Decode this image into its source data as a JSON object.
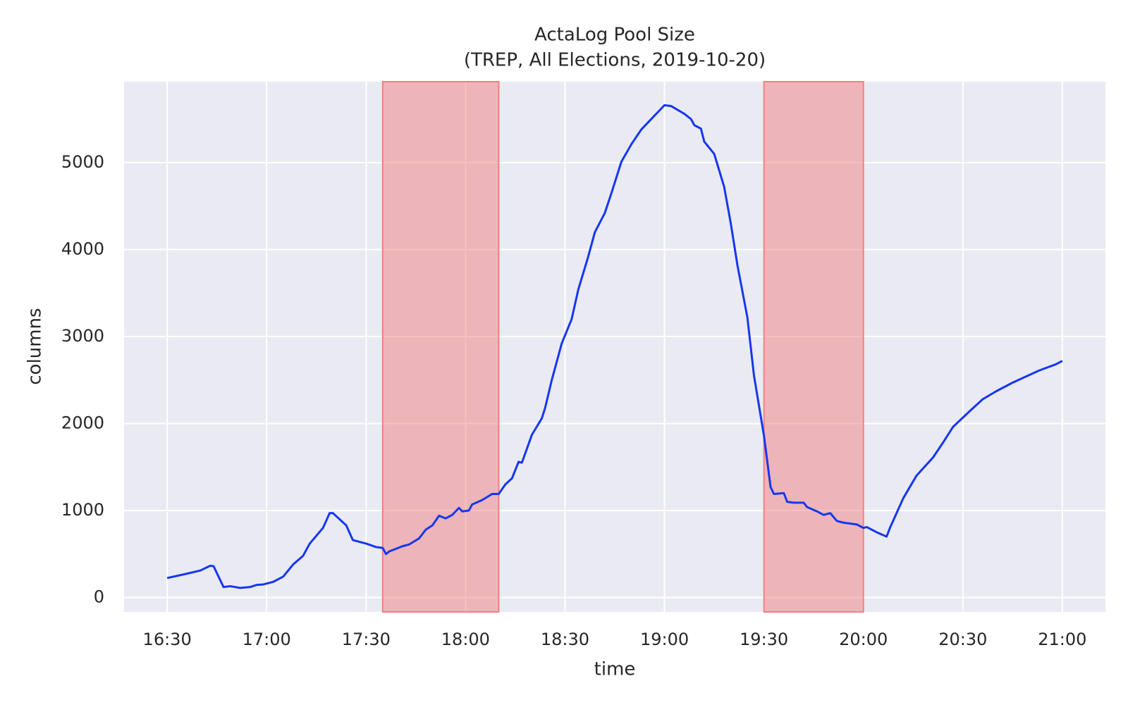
{
  "chart_data": {
    "type": "line",
    "title": "ActaLog Pool Size",
    "subtitle": "(TREP, All Elections, 2019-10-20)",
    "x_label": "time",
    "y_label": "columns",
    "x": [
      "16:30",
      "16:36",
      "16:40",
      "16:43",
      "16:44",
      "16:47",
      "16:49",
      "16:52",
      "16:55",
      "16:57",
      "16:59",
      "17:02",
      "17:05",
      "17:08",
      "17:11",
      "17:13",
      "17:17",
      "17:19",
      "17:20",
      "17:24",
      "17:26",
      "17:30",
      "17:33",
      "17:35",
      "17:36",
      "17:37",
      "17:41",
      "17:43",
      "17:46",
      "17:48",
      "17:50",
      "17:52",
      "17:54",
      "17:56",
      "17:58",
      "17:59",
      "18:01",
      "18:02",
      "18:05",
      "18:08",
      "18:10",
      "18:12",
      "18:14",
      "18:16",
      "18:17",
      "18:20",
      "18:23",
      "18:24",
      "18:26",
      "18:29",
      "18:32",
      "18:34",
      "18:37",
      "18:39",
      "18:42",
      "18:44",
      "18:47",
      "18:50",
      "18:53",
      "18:57",
      "19:00",
      "19:02",
      "19:06",
      "19:08",
      "19:09",
      "19:11",
      "19:12",
      "19:15",
      "19:18",
      "19:20",
      "19:22",
      "19:25",
      "19:27",
      "19:30",
      "19:32",
      "19:33",
      "19:36",
      "19:37",
      "19:39",
      "19:42",
      "19:43",
      "19:46",
      "19:48",
      "19:50",
      "19:52",
      "19:54",
      "19:58",
      "20:00",
      "20:01",
      "20:04",
      "20:07",
      "20:08",
      "20:12",
      "20:16",
      "20:21",
      "20:24",
      "20:27",
      "20:32",
      "20:36",
      "20:40",
      "20:45",
      "20:49",
      "20:53",
      "20:58",
      "21:00"
    ],
    "series": [
      {
        "color": "#1537f0",
        "values": [
          224,
          274,
          310,
          365,
          360,
          120,
          130,
          110,
          120,
          145,
          150,
          180,
          240,
          380,
          480,
          620,
          800,
          970,
          970,
          830,
          660,
          620,
          580,
          570,
          500,
          530,
          590,
          610,
          680,
          780,
          830,
          940,
          910,
          950,
          1030,
          990,
          1000,
          1070,
          1120,
          1190,
          1190,
          1300,
          1370,
          1560,
          1550,
          1870,
          2060,
          2180,
          2500,
          2920,
          3200,
          3540,
          3920,
          4200,
          4420,
          4650,
          5010,
          5210,
          5380,
          5540,
          5660,
          5650,
          5560,
          5500,
          5430,
          5390,
          5240,
          5100,
          4720,
          4300,
          3820,
          3220,
          2550,
          1860,
          1270,
          1190,
          1200,
          1100,
          1090,
          1090,
          1040,
          990,
          950,
          970,
          880,
          860,
          840,
          800,
          810,
          750,
          700,
          800,
          1140,
          1400,
          1610,
          1780,
          1960,
          2140,
          2280,
          2370,
          2470,
          2540,
          2610,
          2680,
          2720
        ]
      }
    ],
    "spans": [
      {
        "start": "17:35",
        "end": "18:10",
        "color": "#f08080"
      },
      {
        "start": "19:30",
        "end": "20:00",
        "color": "#f08080"
      }
    ],
    "xlim": [
      "16:17",
      "21:13"
    ],
    "xticks": [
      "16:30",
      "17:00",
      "17:30",
      "18:00",
      "18:30",
      "19:00",
      "19:30",
      "20:00",
      "20:30",
      "21:00"
    ],
    "ylim": [
      -166,
      5930
    ],
    "yticks": [
      0,
      1000,
      2000,
      3000,
      4000,
      5000
    ],
    "grid": true,
    "background": "#eaeaf2"
  }
}
